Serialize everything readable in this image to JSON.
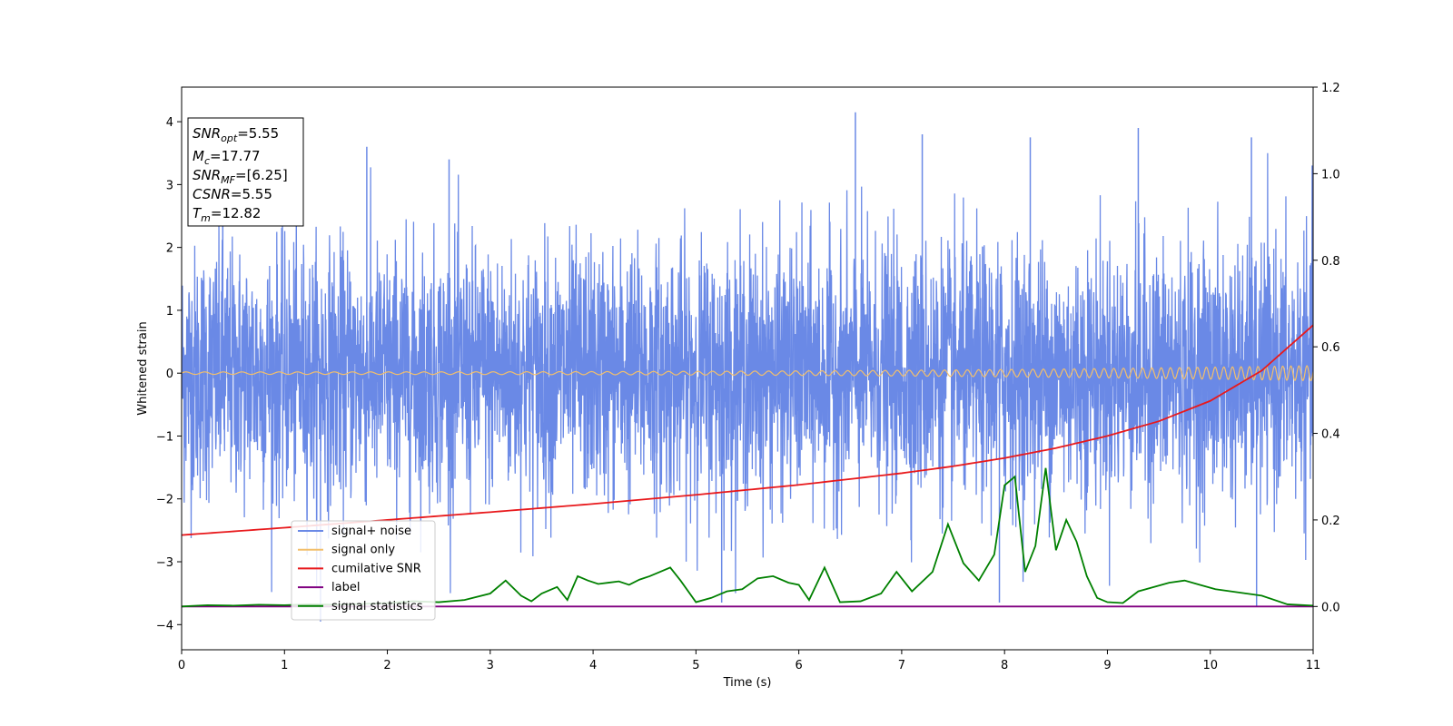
{
  "chart_data": {
    "type": "line",
    "title": "",
    "xlabel": "Time (s)",
    "ylabel": "Whitened strain",
    "xlim": [
      0,
      11
    ],
    "ylim": [
      -4.4,
      4.55
    ],
    "y2lim": [
      -0.1,
      1.2
    ],
    "xticks": [
      0,
      1,
      2,
      3,
      4,
      5,
      6,
      7,
      8,
      9,
      10,
      11
    ],
    "yticks": [
      -4,
      -3,
      -2,
      -1,
      0,
      1,
      2,
      3,
      4
    ],
    "y2ticks": [
      "0.0",
      "0.2",
      "0.4",
      "0.6",
      "0.8",
      "1.0",
      "1.2"
    ],
    "y2tick_values": [
      0.0,
      0.2,
      0.4,
      0.6,
      0.8,
      1.0,
      1.2
    ],
    "grid": false,
    "legend_position": "lower-left",
    "annotation": [
      {
        "italic": "SNR",
        "sub": "opt",
        "value": "=5.55"
      },
      {
        "italic": "M",
        "sub": "c",
        "value": "=17.77"
      },
      {
        "italic": "SNR",
        "sub": "MF",
        "value": "=[6.25]"
      },
      {
        "italic": "CSNR",
        "sub": "",
        "value": "=5.55"
      },
      {
        "italic": "T",
        "sub": "m",
        "value": "=12.82"
      }
    ],
    "series": [
      {
        "name": "signal+ noise",
        "axis": "left",
        "color": "#6a89e6",
        "description_range": [
          -3.9,
          4.2
        ],
        "noise_sigma": 1.0,
        "peaks": [
          [
            0.4,
            3.3
          ],
          [
            1.8,
            3.6
          ],
          [
            2.6,
            3.4
          ],
          [
            6.55,
            4.15
          ],
          [
            7.2,
            3.8
          ],
          [
            8.25,
            3.75
          ],
          [
            9.3,
            3.9
          ],
          [
            10.4,
            3.75
          ],
          [
            1.35,
            -3.95
          ],
          [
            5.25,
            -3.65
          ],
          [
            7.95,
            -3.65
          ],
          [
            10.45,
            -3.7
          ]
        ]
      },
      {
        "name": "signal only",
        "axis": "left",
        "color": "#f2bf6c",
        "amplitude_start": 0.02,
        "amplitude_end": 0.12,
        "freq_start": 5.5,
        "freq_end": 13
      },
      {
        "name": "cumilative SNR",
        "axis": "right",
        "color": "#e8191c",
        "x": [
          0,
          1,
          2,
          3,
          4,
          5,
          6,
          7,
          7.5,
          8,
          8.5,
          9,
          9.5,
          10,
          10.5,
          11
        ],
        "values": [
          0.165,
          0.182,
          0.2,
          0.218,
          0.237,
          0.258,
          0.281,
          0.308,
          0.324,
          0.343,
          0.366,
          0.394,
          0.428,
          0.475,
          0.545,
          0.65
        ]
      },
      {
        "name": "label",
        "axis": "right",
        "color": "#800080",
        "x": [
          0,
          11
        ],
        "values": [
          0,
          0
        ]
      },
      {
        "name": "signal statistics",
        "axis": "right",
        "color": "#008000",
        "x": [
          0,
          0.25,
          0.5,
          0.75,
          1,
          1.25,
          1.5,
          1.75,
          2,
          2.25,
          2.5,
          2.75,
          3,
          3.15,
          3.3,
          3.4,
          3.5,
          3.65,
          3.75,
          3.85,
          3.95,
          4.05,
          4.15,
          4.25,
          4.35,
          4.45,
          4.55,
          4.65,
          4.75,
          4.85,
          5,
          5.15,
          5.3,
          5.45,
          5.6,
          5.75,
          5.9,
          6,
          6.1,
          6.25,
          6.4,
          6.6,
          6.8,
          6.95,
          7.1,
          7.3,
          7.45,
          7.6,
          7.75,
          7.9,
          8.0,
          8.1,
          8.2,
          8.3,
          8.4,
          8.5,
          8.6,
          8.7,
          8.8,
          8.9,
          9.0,
          9.15,
          9.3,
          9.45,
          9.6,
          9.75,
          9.9,
          10.05,
          10.2,
          10.35,
          10.5,
          10.75,
          11
        ],
        "values": [
          0,
          0.003,
          0.002,
          0.004,
          0.003,
          0.005,
          0.004,
          0.006,
          0.008,
          0.012,
          0.01,
          0.015,
          0.03,
          0.06,
          0.025,
          0.012,
          0.03,
          0.045,
          0.015,
          0.07,
          0.06,
          0.052,
          0.055,
          0.058,
          0.05,
          0.062,
          0.07,
          0.08,
          0.09,
          0.06,
          0.01,
          0.02,
          0.035,
          0.04,
          0.065,
          0.07,
          0.055,
          0.05,
          0.015,
          0.09,
          0.01,
          0.012,
          0.03,
          0.08,
          0.035,
          0.08,
          0.19,
          0.1,
          0.06,
          0.12,
          0.28,
          0.3,
          0.08,
          0.14,
          0.32,
          0.13,
          0.2,
          0.15,
          0.07,
          0.02,
          0.01,
          0.008,
          0.035,
          0.045,
          0.055,
          0.06,
          0.05,
          0.04,
          0.035,
          0.03,
          0.025,
          0.005,
          0.002
        ]
      }
    ]
  }
}
